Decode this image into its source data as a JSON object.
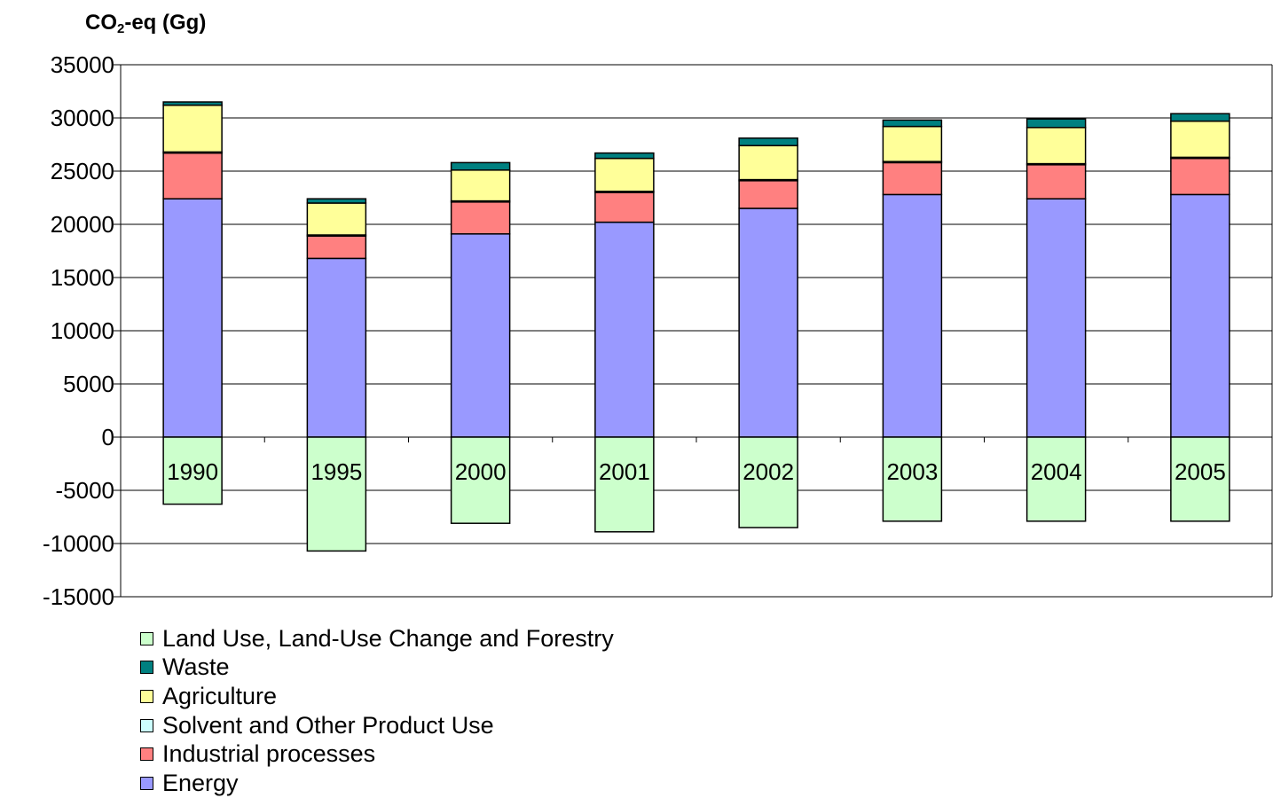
{
  "chart_data": {
    "type": "bar",
    "stacked": true,
    "categories": [
      "1990",
      "1995",
      "2000",
      "2001",
      "2002",
      "2003",
      "2004",
      "2005"
    ],
    "ylabel_main": "CO",
    "ylabel_sub": "2",
    "ylabel_rest": "-eq (Gg)",
    "ylim": [
      -15000,
      35000
    ],
    "yticks": [
      "35000",
      "30000",
      "25000",
      "20000",
      "15000",
      "10000",
      "5000",
      "0",
      "-5000",
      "-10000",
      "-15000"
    ],
    "grid": true,
    "legend_position": "bottom-left",
    "series": [
      {
        "name": "Energy",
        "color": "#9999FF",
        "values": [
          22400,
          16800,
          19100,
          20200,
          21500,
          22800,
          22400,
          22800
        ]
      },
      {
        "name": "Industrial processes",
        "color": "#FF8080",
        "values": [
          4300,
          2100,
          3000,
          2800,
          2600,
          3000,
          3200,
          3400
        ]
      },
      {
        "name": "Solvent and Other Product Use",
        "color": "#CCFFFF",
        "values": [
          100,
          100,
          100,
          100,
          100,
          100,
          100,
          100
        ]
      },
      {
        "name": "Agriculture",
        "color": "#FFFF99",
        "values": [
          4400,
          3000,
          2900,
          3100,
          3200,
          3300,
          3400,
          3400
        ]
      },
      {
        "name": "Waste",
        "color": "#008080",
        "values": [
          300,
          400,
          700,
          500,
          700,
          600,
          800,
          700
        ]
      },
      {
        "name": "Land Use, Land-Use Change and Forestry",
        "color": "#CCFFCC",
        "values": [
          -6300,
          -10700,
          -8100,
          -8900,
          -8500,
          -7900,
          -7900,
          -7900
        ]
      }
    ]
  }
}
